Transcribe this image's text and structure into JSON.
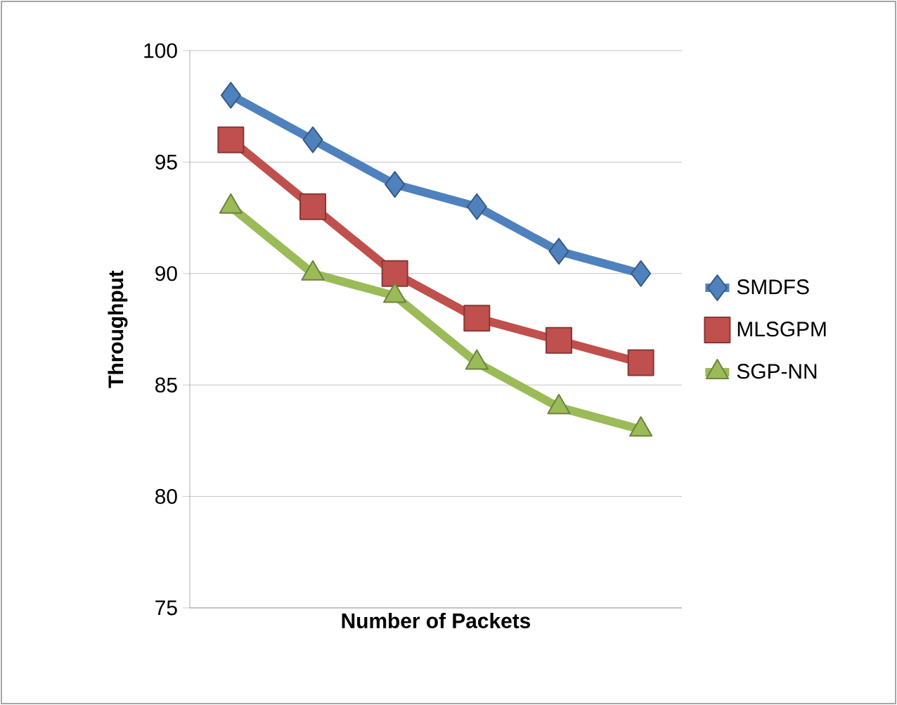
{
  "chart_data": {
    "type": "line",
    "xlabel": "Number of Packets",
    "ylabel": "Throughput",
    "categories": [
      null,
      null,
      null,
      null,
      null,
      null
    ],
    "series": [
      {
        "name": "SMDFS",
        "color": "#4f81bd",
        "marker": "diamond",
        "values": [
          98,
          96,
          94,
          93,
          91,
          90
        ]
      },
      {
        "name": "MLSGPM",
        "color": "#c0504d",
        "marker": "square",
        "values": [
          96,
          93,
          90,
          88,
          87,
          86
        ]
      },
      {
        "name": "SGP-NN",
        "color": "#9bbb59",
        "marker": "triangle",
        "values": [
          93,
          90,
          89,
          86,
          84,
          83
        ]
      }
    ],
    "ylim": [
      75,
      100
    ],
    "yticks": [
      75,
      80,
      85,
      90,
      95,
      100
    ],
    "grid": "y",
    "legend": "right",
    "tick_labels": "y",
    "line_style": "solid"
  }
}
